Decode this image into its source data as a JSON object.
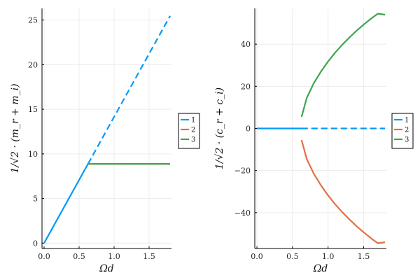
{
  "chart_data": [
    {
      "type": "line",
      "xlabel": "Ωd",
      "ylabel_fraction": "1/√2",
      "ylabel_expr": "· (m_r + m_i)",
      "xlim": [
        -0.03,
        1.82
      ],
      "ylim": [
        -0.6,
        26.3
      ],
      "xticks": [
        0.0,
        0.5,
        1.0,
        1.5
      ],
      "xtick_labels": [
        "0.0",
        "0.5",
        "1.0",
        "1.5"
      ],
      "yticks": [
        0,
        5,
        10,
        15,
        20,
        25
      ],
      "ytick_labels": [
        "0",
        "5",
        "10",
        "15",
        "20",
        "25"
      ],
      "grid": true,
      "legend": "right",
      "series": [
        {
          "name": "1",
          "color": "#009AFA",
          "segments": [
            {
              "style": "solid",
              "points": [
                [
                  0.0,
                  0.0
                ],
                [
                  0.627,
                  8.87
                ]
              ]
            },
            {
              "style": "dashed",
              "points": [
                [
                  0.627,
                  8.87
                ],
                [
                  1.8,
                  25.46
                ]
              ]
            }
          ]
        },
        {
          "name": "2",
          "color": "#E26F46",
          "segments": [
            {
              "style": "solid",
              "points": [
                [
                  0.627,
                  8.87
                ],
                [
                  1.8,
                  8.87
                ]
              ]
            }
          ]
        },
        {
          "name": "3",
          "color": "#3EA44E",
          "segments": [
            {
              "style": "solid",
              "points": [
                [
                  0.627,
                  8.87
                ],
                [
                  1.8,
                  8.87
                ]
              ]
            }
          ]
        }
      ]
    },
    {
      "type": "line",
      "xlabel": "Ωd",
      "ylabel_fraction": "1/√2",
      "ylabel_expr": "· (c_r + c_i)",
      "xlim": [
        -0.03,
        1.82
      ],
      "ylim": [
        -57,
        57
      ],
      "xticks": [
        0.0,
        0.5,
        1.0,
        1.5
      ],
      "xtick_labels": [
        "0.0",
        "0.5",
        "1.0",
        "1.5"
      ],
      "yticks": [
        -40,
        -20,
        0,
        20,
        40
      ],
      "ytick_labels": [
        "−40",
        "−20",
        "0",
        "20",
        "40"
      ],
      "grid": true,
      "legend": "right",
      "series": [
        {
          "name": "1",
          "color": "#009AFA",
          "segments": [
            {
              "style": "solid",
              "points": [
                [
                  0.0,
                  0.0
                ],
                [
                  0.627,
                  0.0
                ]
              ]
            },
            {
              "style": "dashed",
              "points": [
                [
                  0.627,
                  0.0
                ],
                [
                  1.8,
                  0.0
                ]
              ]
            }
          ]
        },
        {
          "name": "2",
          "color": "#E26F46",
          "segments": [
            {
              "style": "solid",
              "points": [
                [
                  0.627,
                  -5.5
                ],
                [
                  0.7,
                  -14.5
                ],
                [
                  0.8,
                  -21.5
                ],
                [
                  0.9,
                  -27.0
                ],
                [
                  1.0,
                  -31.8
                ],
                [
                  1.1,
                  -36.0
                ],
                [
                  1.2,
                  -39.8
                ],
                [
                  1.3,
                  -43.2
                ],
                [
                  1.4,
                  -46.4
                ],
                [
                  1.5,
                  -49.3
                ],
                [
                  1.6,
                  -52.0
                ],
                [
                  1.7,
                  -54.5
                ],
                [
                  1.8,
                  -54.0
                ]
              ]
            }
          ]
        },
        {
          "name": "3",
          "color": "#3EA44E",
          "segments": [
            {
              "style": "solid",
              "points": [
                [
                  0.627,
                  5.5
                ],
                [
                  0.7,
                  14.5
                ],
                [
                  0.8,
                  21.5
                ],
                [
                  0.9,
                  27.0
                ],
                [
                  1.0,
                  31.8
                ],
                [
                  1.1,
                  36.0
                ],
                [
                  1.2,
                  39.8
                ],
                [
                  1.3,
                  43.2
                ],
                [
                  1.4,
                  46.4
                ],
                [
                  1.5,
                  49.3
                ],
                [
                  1.6,
                  52.0
                ],
                [
                  1.7,
                  54.5
                ],
                [
                  1.8,
                  54.0
                ]
              ]
            }
          ]
        }
      ]
    }
  ]
}
